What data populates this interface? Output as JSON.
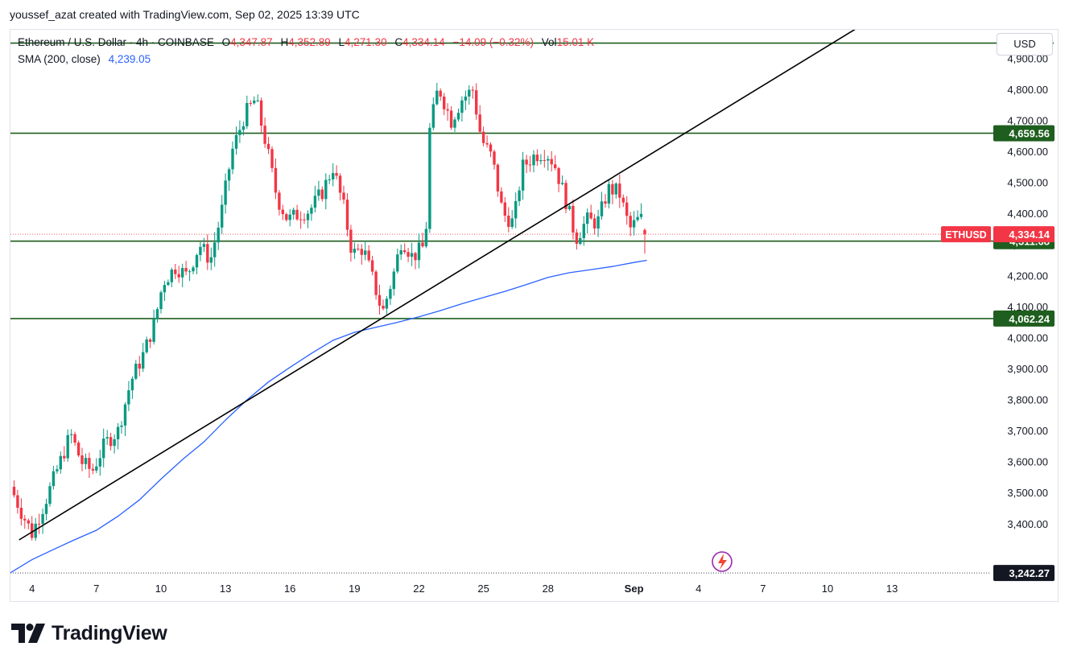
{
  "header": {
    "credit": "youssef_azat created with TradingView.com, Sep 02, 2025 13:39 UTC"
  },
  "legend": {
    "symbol": "Ethereum / U.S. Dollar · 4h · COINBASE",
    "o_label": "O",
    "o_value": "4,347.87",
    "h_label": "H",
    "h_value": "4,352.89",
    "l_label": "L",
    "l_value": "4,271.30",
    "c_label": "C",
    "c_value": "4,334.14",
    "change": "−14.09 (−0.32%)",
    "vol_label": "Vol",
    "vol_value": "15.01 K",
    "sma_label": "SMA (200, close)",
    "sma_value": "4,239.05"
  },
  "currency_button": "USD",
  "brand": {
    "name": "TradingView"
  },
  "colors": {
    "up": "#089981",
    "down": "#f23645",
    "sma": "#2962ff",
    "level": "#1e5e1e",
    "trendline": "#000000",
    "label_dark": "#131722"
  },
  "chart_data": {
    "type": "candlestick",
    "title": "Ethereum / U.S. Dollar · 4h · COINBASE",
    "x_axis": {
      "tick_labels": [
        "4",
        "7",
        "10",
        "13",
        "16",
        "19",
        "22",
        "25",
        "28",
        "Sep",
        "4",
        "7",
        "10",
        "13"
      ],
      "tick_days": [
        4,
        7,
        10,
        13,
        16,
        19,
        22,
        25,
        28,
        32,
        35,
        38,
        41,
        44
      ],
      "range_days": [
        3.0,
        48.6
      ]
    },
    "y_axis": {
      "tick_labels": [
        "3,400.00",
        "3,500.00",
        "3,600.00",
        "3,700.00",
        "3,800.00",
        "3,900.00",
        "4,000.00",
        "4,100.00",
        "4,200.00",
        "4,300.00",
        "4,400.00",
        "4,500.00",
        "4,600.00",
        "4,700.00",
        "4,800.00",
        "4,900.00"
      ],
      "ticks": [
        3400,
        3500,
        3600,
        3700,
        3800,
        3900,
        4000,
        4100,
        4200,
        4300,
        4400,
        4500,
        4600,
        4700,
        4800,
        4900
      ],
      "range": [
        3227,
        4993
      ],
      "position": "right"
    },
    "close_path": [
      [
        3.0,
        3520
      ],
      [
        3.5,
        3440
      ],
      [
        4.0,
        3370
      ],
      [
        4.6,
        3470
      ],
      [
        5.2,
        3580
      ],
      [
        5.8,
        3690
      ],
      [
        6.3,
        3600
      ],
      [
        6.8,
        3570
      ],
      [
        7.4,
        3660
      ],
      [
        8.0,
        3700
      ],
      [
        8.6,
        3860
      ],
      [
        9.2,
        3950
      ],
      [
        9.7,
        4050
      ],
      [
        10.1,
        4180
      ],
      [
        10.7,
        4230
      ],
      [
        11.2,
        4200
      ],
      [
        11.8,
        4300
      ],
      [
        12.3,
        4250
      ],
      [
        12.8,
        4400
      ],
      [
        13.3,
        4600
      ],
      [
        13.9,
        4720
      ],
      [
        14.4,
        4770
      ],
      [
        14.9,
        4620
      ],
      [
        15.4,
        4450
      ],
      [
        15.9,
        4380
      ],
      [
        16.4,
        4400
      ],
      [
        16.9,
        4410
      ],
      [
        17.5,
        4470
      ],
      [
        18.0,
        4550
      ],
      [
        18.5,
        4420
      ],
      [
        18.9,
        4270
      ],
      [
        19.4,
        4290
      ],
      [
        19.8,
        4200
      ],
      [
        20.3,
        4080
      ],
      [
        20.8,
        4200
      ],
      [
        21.2,
        4320
      ],
      [
        21.7,
        4260
      ],
      [
        22.3,
        4300
      ],
      [
        22.5,
        4670
      ],
      [
        22.9,
        4810
      ],
      [
        23.5,
        4700
      ],
      [
        24.0,
        4770
      ],
      [
        24.5,
        4800
      ],
      [
        24.9,
        4640
      ],
      [
        25.4,
        4580
      ],
      [
        25.9,
        4400
      ],
      [
        26.4,
        4370
      ],
      [
        26.8,
        4550
      ],
      [
        27.4,
        4590
      ],
      [
        27.9,
        4600
      ],
      [
        28.3,
        4560
      ],
      [
        28.8,
        4450
      ],
      [
        29.3,
        4320
      ],
      [
        29.8,
        4380
      ],
      [
        30.3,
        4370
      ],
      [
        30.8,
        4480
      ],
      [
        31.3,
        4470
      ],
      [
        31.8,
        4350
      ],
      [
        32.3,
        4390
      ],
      [
        32.6,
        4334.14
      ]
    ],
    "sma_path": [
      [
        3.0,
        3243
      ],
      [
        4.0,
        3285
      ],
      [
        5.0,
        3318
      ],
      [
        6.0,
        3350
      ],
      [
        7.0,
        3380
      ],
      [
        8.0,
        3425
      ],
      [
        9.0,
        3478
      ],
      [
        10.0,
        3545
      ],
      [
        11.0,
        3608
      ],
      [
        12.0,
        3665
      ],
      [
        13.0,
        3735
      ],
      [
        14.0,
        3800
      ],
      [
        15.0,
        3858
      ],
      [
        16.0,
        3905
      ],
      [
        17.0,
        3950
      ],
      [
        18.0,
        3992
      ],
      [
        19.0,
        4018
      ],
      [
        20.0,
        4034
      ],
      [
        21.0,
        4050
      ],
      [
        22.0,
        4068
      ],
      [
        23.0,
        4088
      ],
      [
        24.0,
        4110
      ],
      [
        25.0,
        4130
      ],
      [
        26.0,
        4150
      ],
      [
        27.0,
        4172
      ],
      [
        28.0,
        4195
      ],
      [
        29.0,
        4210
      ],
      [
        30.0,
        4220
      ],
      [
        31.0,
        4230
      ],
      [
        32.0,
        4243
      ],
      [
        32.6,
        4250
      ]
    ],
    "horizontal_levels": [
      {
        "value": 4950,
        "label": ""
      },
      {
        "value": 4659.56,
        "label": "4,659.56"
      },
      {
        "value": 4311.68,
        "label": "4,311.68"
      },
      {
        "value": 4062.24,
        "label": "4,062.24"
      }
    ],
    "dotted_levels": [
      {
        "value": 3242.27,
        "label": "3,242.27"
      },
      {
        "value": 4334.14,
        "label": "4,334.14"
      }
    ],
    "trendline": {
      "from": [
        3.4,
        3349
      ],
      "to": [
        43.0,
        5025
      ]
    },
    "last_price": {
      "ticker": "ETHUSD",
      "value": "4,334.14"
    },
    "series": [
      {
        "name": "SMA (200, close)",
        "type": "line",
        "last": 4239.05
      }
    ]
  }
}
